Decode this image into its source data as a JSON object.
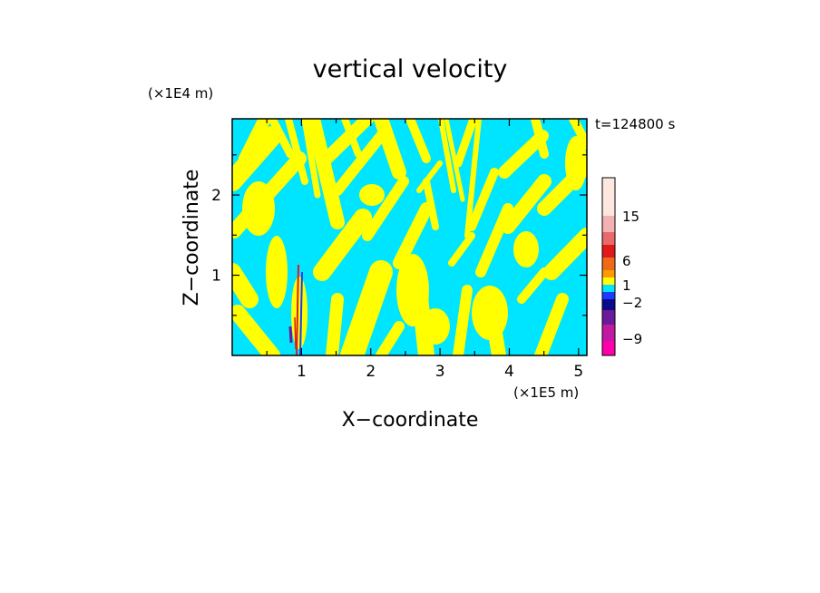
{
  "chart_data": {
    "type": "heatmap",
    "title": "vertical velocity",
    "xlabel": "X−coordinate",
    "ylabel": "Z−coordinate",
    "x_unit": "(×1E5 m)",
    "y_unit": "(×1E4 m)",
    "time_label": "t=124800 s",
    "xlim": [
      0,
      5.12
    ],
    "ylim": [
      0,
      2.95
    ],
    "x_ticks": [
      "1",
      "2",
      "3",
      "4",
      "5"
    ],
    "y_ticks": [
      "1",
      "2"
    ],
    "colorbar": {
      "labels": [
        "15",
        "6",
        "1",
        "−2",
        "−9"
      ],
      "colors": [
        "#fde8e0",
        "#f3b1b1",
        "#e86a6a",
        "#e01a1a",
        "#ee6a1a",
        "#ff9a00",
        "#ffff00",
        "#00e5ff",
        "#1a3cff",
        "#0a0a8a",
        "#6a1a9a",
        "#c01aa0",
        "#ff00aa"
      ]
    },
    "dominant_values": {
      "yellow": "0 to 1",
      "cyan": "-1 to 0"
    }
  }
}
